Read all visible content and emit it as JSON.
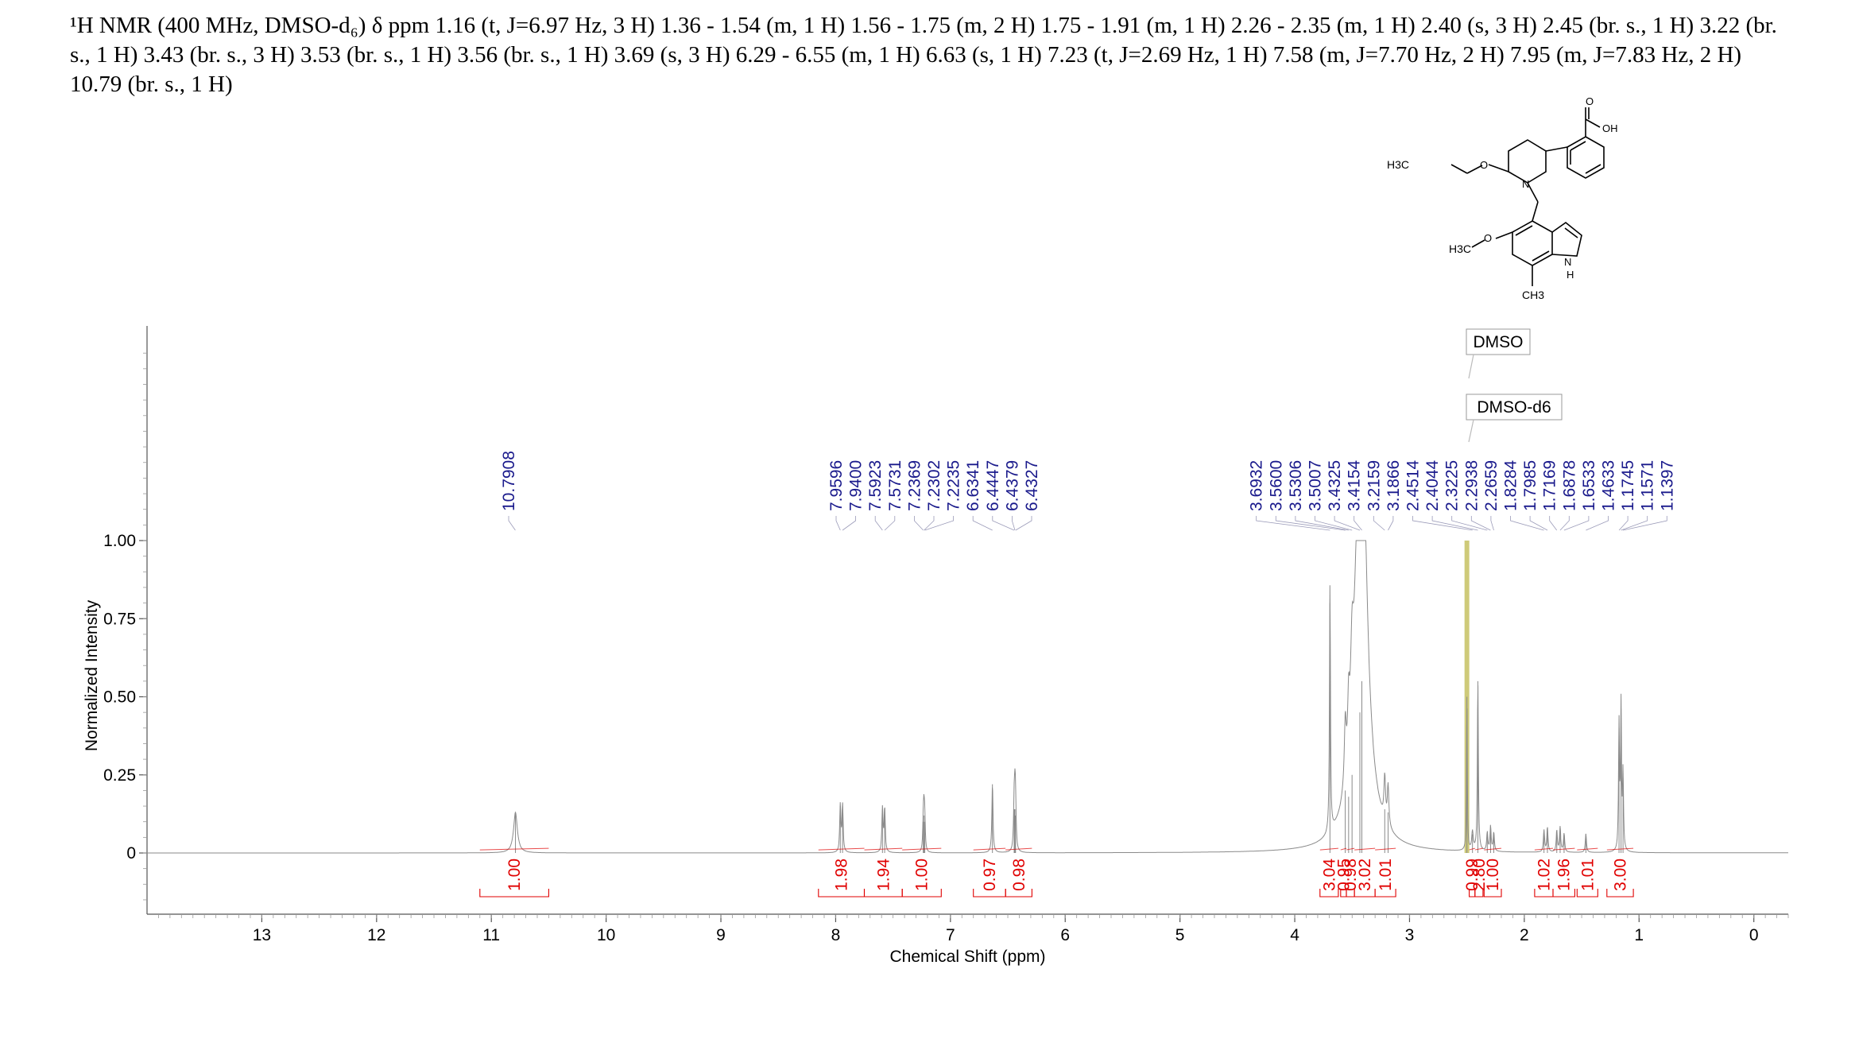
{
  "header": {
    "text": "¹H NMR (400 MHz, DMSO-d₆) δ ppm 1.16 (t, J=6.97 Hz, 3 H) 1.36 - 1.54 (m, 1 H) 1.56 - 1.75 (m, 2 H) 1.75 - 1.91 (m, 1 H) 2.26 - 2.35 (m, 1 H) 2.40 (s, 3 H) 2.45 (br. s., 1 H) 3.22 (br. s., 1 H) 3.43 (br. s., 3 H) 3.53 (br. s., 1 H) 3.56 (br. s., 1 H) 3.69 (s, 3 H) 6.29 - 6.55 (m, 1 H) 6.63 (s, 1 H) 7.23 (t, J=2.69 Hz, 1 H) 7.58 (m, J=7.70 Hz, 2 H) 7.95 (m, J=7.83 Hz, 2 H) 10.79 (br. s., 1 H)"
  },
  "structure_labels": {
    "o1": "O",
    "oh": "OH",
    "h3c_ethyl": "H3C",
    "o_ether": "O",
    "n_pip": "N",
    "h3c_methoxy": "H3C",
    "o_methoxy": "O",
    "nh_n": "N",
    "nh_h": "H",
    "ch3": "CH3"
  },
  "solvent_labels": {
    "dmso": "DMSO",
    "dmso_d6": "DMSO-d6"
  },
  "colors": {
    "peak_label": "#1a1a8c",
    "integral": "#e00000",
    "spectrum": "#8a8a8a",
    "solvent_band": "#c9c46a",
    "axis": "#555555"
  },
  "chart_data": {
    "type": "line",
    "xlabel": "Chemical Shift (ppm)",
    "ylabel": "Normalized Intensity",
    "xlim": [
      14,
      -0.3
    ],
    "ylim": [
      -0.2,
      1.7
    ],
    "x_ticks": [
      "13",
      "12",
      "11",
      "10",
      "9",
      "8",
      "7",
      "6",
      "5",
      "4",
      "3",
      "2",
      "1",
      "0"
    ],
    "y_ticks": [
      {
        "value": 1.0,
        "label": "1.00"
      },
      {
        "value": 0.75,
        "label": "0.75"
      },
      {
        "value": 0.5,
        "label": "0.50"
      },
      {
        "value": 0.25,
        "label": "0.25"
      },
      {
        "value": 0,
        "label": "0"
      }
    ],
    "peaks": [
      {
        "ppm": 10.79,
        "h": 0.13,
        "w": 0.02
      },
      {
        "ppm": 7.9596,
        "h": 0.15,
        "w": 0.006
      },
      {
        "ppm": 7.94,
        "h": 0.15,
        "w": 0.006
      },
      {
        "ppm": 7.5923,
        "h": 0.14,
        "w": 0.006
      },
      {
        "ppm": 7.5731,
        "h": 0.14,
        "w": 0.006
      },
      {
        "ppm": 7.2369,
        "h": 0.1,
        "w": 0.005
      },
      {
        "ppm": 7.2302,
        "h": 0.12,
        "w": 0.005
      },
      {
        "ppm": 7.2235,
        "h": 0.1,
        "w": 0.005
      },
      {
        "ppm": 6.6341,
        "h": 0.22,
        "w": 0.006
      },
      {
        "ppm": 6.4447,
        "h": 0.14,
        "w": 0.006
      },
      {
        "ppm": 6.4379,
        "h": 0.14,
        "w": 0.006
      },
      {
        "ppm": 6.4327,
        "h": 0.12,
        "w": 0.006
      },
      {
        "ppm": 3.6932,
        "h": 0.8,
        "w": 0.005
      },
      {
        "ppm": 3.56,
        "h": 0.2,
        "w": 0.01
      },
      {
        "ppm": 3.5306,
        "h": 0.18,
        "w": 0.01
      },
      {
        "ppm": 3.5007,
        "h": 0.25,
        "w": 0.015
      },
      {
        "ppm": 3.4325,
        "h": 0.45,
        "w": 0.04
      },
      {
        "ppm": 3.4154,
        "h": 0.55,
        "w": 0.04
      },
      {
        "ppm": 3.2159,
        "h": 0.14,
        "w": 0.008
      },
      {
        "ppm": 3.1866,
        "h": 0.13,
        "w": 0.008
      },
      {
        "ppm": 2.5,
        "h": 0.5,
        "w": 0.004
      },
      {
        "ppm": 2.4514,
        "h": 0.06,
        "w": 0.008
      },
      {
        "ppm": 2.4044,
        "h": 0.55,
        "w": 0.005
      },
      {
        "ppm": 2.3225,
        "h": 0.06,
        "w": 0.006
      },
      {
        "ppm": 2.2938,
        "h": 0.08,
        "w": 0.006
      },
      {
        "ppm": 2.2659,
        "h": 0.06,
        "w": 0.006
      },
      {
        "ppm": 1.8284,
        "h": 0.07,
        "w": 0.006
      },
      {
        "ppm": 1.7985,
        "h": 0.08,
        "w": 0.006
      },
      {
        "ppm": 1.7169,
        "h": 0.07,
        "w": 0.006
      },
      {
        "ppm": 1.6878,
        "h": 0.08,
        "w": 0.006
      },
      {
        "ppm": 1.6533,
        "h": 0.06,
        "w": 0.006
      },
      {
        "ppm": 1.4633,
        "h": 0.06,
        "w": 0.006
      },
      {
        "ppm": 1.1745,
        "h": 0.4,
        "w": 0.005
      },
      {
        "ppm": 1.1571,
        "h": 0.46,
        "w": 0.005
      },
      {
        "ppm": 1.1397,
        "h": 0.24,
        "w": 0.005
      }
    ],
    "broad_peak": {
      "ppm": 3.42,
      "h": 0.7,
      "w": 0.07
    },
    "peak_label_groups": [
      {
        "labels": [
          "10.7908"
        ],
        "targets": [
          10.7908
        ]
      },
      {
        "labels": [
          "7.9596",
          "7.9400",
          "7.5923",
          "7.5731",
          "7.2369",
          "7.2302",
          "7.2235",
          "6.6341",
          "6.4447",
          "6.4379",
          "6.4327"
        ],
        "targets": [
          7.9596,
          7.94,
          7.5923,
          7.5731,
          7.2369,
          7.2302,
          7.2235,
          6.6341,
          6.4447,
          6.4379,
          6.4327
        ]
      },
      {
        "labels": [
          "3.6932",
          "3.5600",
          "3.5306",
          "3.5007",
          "3.4325",
          "3.4154",
          "3.2159",
          "3.1866",
          "2.4514",
          "2.4044",
          "2.3225",
          "2.2938",
          "2.2659",
          "1.8284",
          "1.7985",
          "1.7169",
          "1.6878",
          "1.6533",
          "1.4633",
          "1.1745",
          "1.1571",
          "1.1397"
        ],
        "targets": [
          3.6932,
          3.56,
          3.5306,
          3.5007,
          3.4325,
          3.4154,
          3.2159,
          3.1866,
          2.4514,
          2.4044,
          2.3225,
          2.2938,
          2.2659,
          1.8284,
          1.7985,
          1.7169,
          1.6878,
          1.6533,
          1.4633,
          1.1745,
          1.1571,
          1.1397
        ]
      }
    ],
    "integrals": [
      {
        "from": 11.1,
        "to": 10.5,
        "value": "1.00"
      },
      {
        "from": 8.15,
        "to": 7.75,
        "value": "1.98"
      },
      {
        "from": 7.75,
        "to": 7.42,
        "value": "1.94"
      },
      {
        "from": 7.42,
        "to": 7.08,
        "value": "1.00"
      },
      {
        "from": 6.8,
        "to": 6.52,
        "value": "0.97"
      },
      {
        "from": 6.52,
        "to": 6.29,
        "value": "0.98"
      },
      {
        "from": 3.78,
        "to": 3.62,
        "value": "3.04"
      },
      {
        "from": 3.6,
        "to": 3.55,
        "value": "0.95"
      },
      {
        "from": 3.55,
        "to": 3.48,
        "value": "0.98"
      },
      {
        "from": 3.48,
        "to": 3.3,
        "value": "3.02"
      },
      {
        "from": 3.3,
        "to": 3.12,
        "value": "1.01"
      },
      {
        "from": 2.48,
        "to": 2.43,
        "value": "0.99"
      },
      {
        "from": 2.43,
        "to": 2.36,
        "value": "2.80"
      },
      {
        "from": 2.35,
        "to": 2.2,
        "value": "1.00"
      },
      {
        "from": 1.91,
        "to": 1.75,
        "value": "1.02"
      },
      {
        "from": 1.75,
        "to": 1.56,
        "value": "1.96"
      },
      {
        "from": 1.54,
        "to": 1.36,
        "value": "1.01"
      },
      {
        "from": 1.28,
        "to": 1.05,
        "value": "3.00"
      }
    ]
  }
}
